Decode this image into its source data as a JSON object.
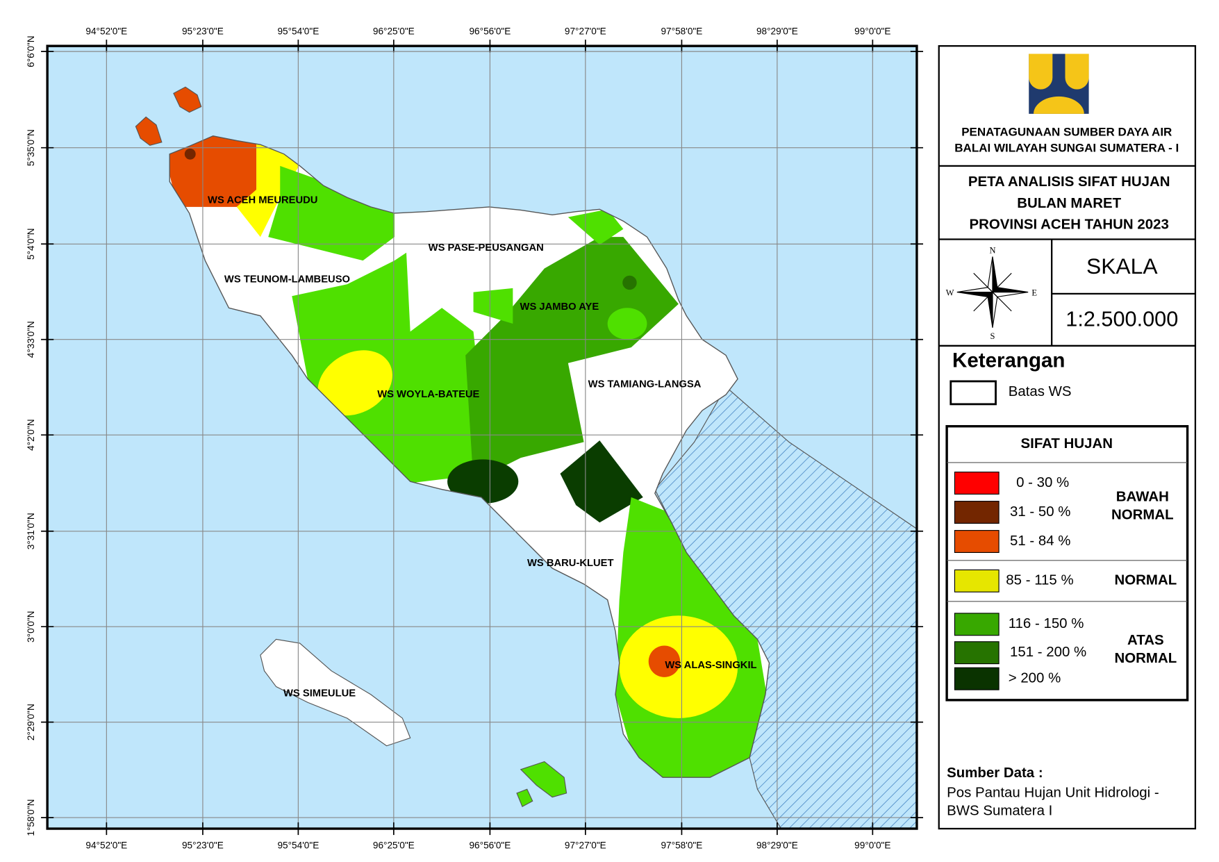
{
  "map": {
    "longitude_labels": [
      "94°52'0\"E",
      "95°23'0\"E",
      "95°54'0\"E",
      "96°25'0\"E",
      "96°56'0\"E",
      "97°27'0\"E",
      "97°58'0\"E",
      "98°29'0\"E",
      "99°0'0\"E"
    ],
    "latitude_labels": [
      "6°6'0\"N",
      "5°35'0\"N",
      "5°4'0\"N",
      "4°33'0\"N",
      "4°2'0\"N",
      "3°31'0\"N",
      "3°0'0\"N",
      "2°29'0\"N",
      "1°58'0\"N"
    ],
    "regions": [
      "WS ACEH MEUREUDU",
      "WS PASE-PEUSANGAN",
      "WS TEUNOM-LAMBEUSO",
      "WS JAMBO AYE",
      "WS TAMIANG-LANGSA",
      "WS WOYLA-BATEUE",
      "WS BARU-KLUET",
      "WS ALAS-SINGKIL",
      "WS SIMEULUE"
    ]
  },
  "header": {
    "agency_lines": [
      "PENATAGUNAAN SUMBER DAYA AIR",
      "BALAI WILAYAH SUNGAI SUMATERA - I"
    ],
    "title_lines": [
      "PETA ANALISIS SIFAT HUJAN",
      "BULAN MARET",
      "PROVINSI ACEH TAHUN 2023"
    ]
  },
  "compass": {
    "n": "N",
    "s": "S",
    "w": "W",
    "e": "E"
  },
  "scale": {
    "label": "SKALA",
    "value": "1:2.500.000"
  },
  "legend": {
    "title": "Keterangan",
    "boundary": "Batas WS",
    "table_title": "SIFAT HUJAN",
    "classes": [
      {
        "label": "0  -  30 %",
        "color": "#ff0000"
      },
      {
        "label": "31  -  50 %",
        "color": "#732600"
      },
      {
        "label": "51  -  84 %",
        "color": "#e64c00"
      },
      {
        "label": "85  -  115 %",
        "color": "#e6e600"
      },
      {
        "label": "116  -  150 %",
        "color": "#38a800"
      },
      {
        "label": "151  -  200 %",
        "color": "#267300"
      },
      {
        "label": ">  200 %",
        "color": "#0a3300"
      }
    ],
    "groups": [
      [
        "BAWAH",
        "NORMAL"
      ],
      [
        "NORMAL"
      ],
      [
        "ATAS",
        "NORMAL"
      ]
    ]
  },
  "source": {
    "title": "Sumber Data :",
    "lines": [
      "Pos Pantau Hujan Unit Hidrologi -",
      "BWS Sumatera I"
    ]
  }
}
